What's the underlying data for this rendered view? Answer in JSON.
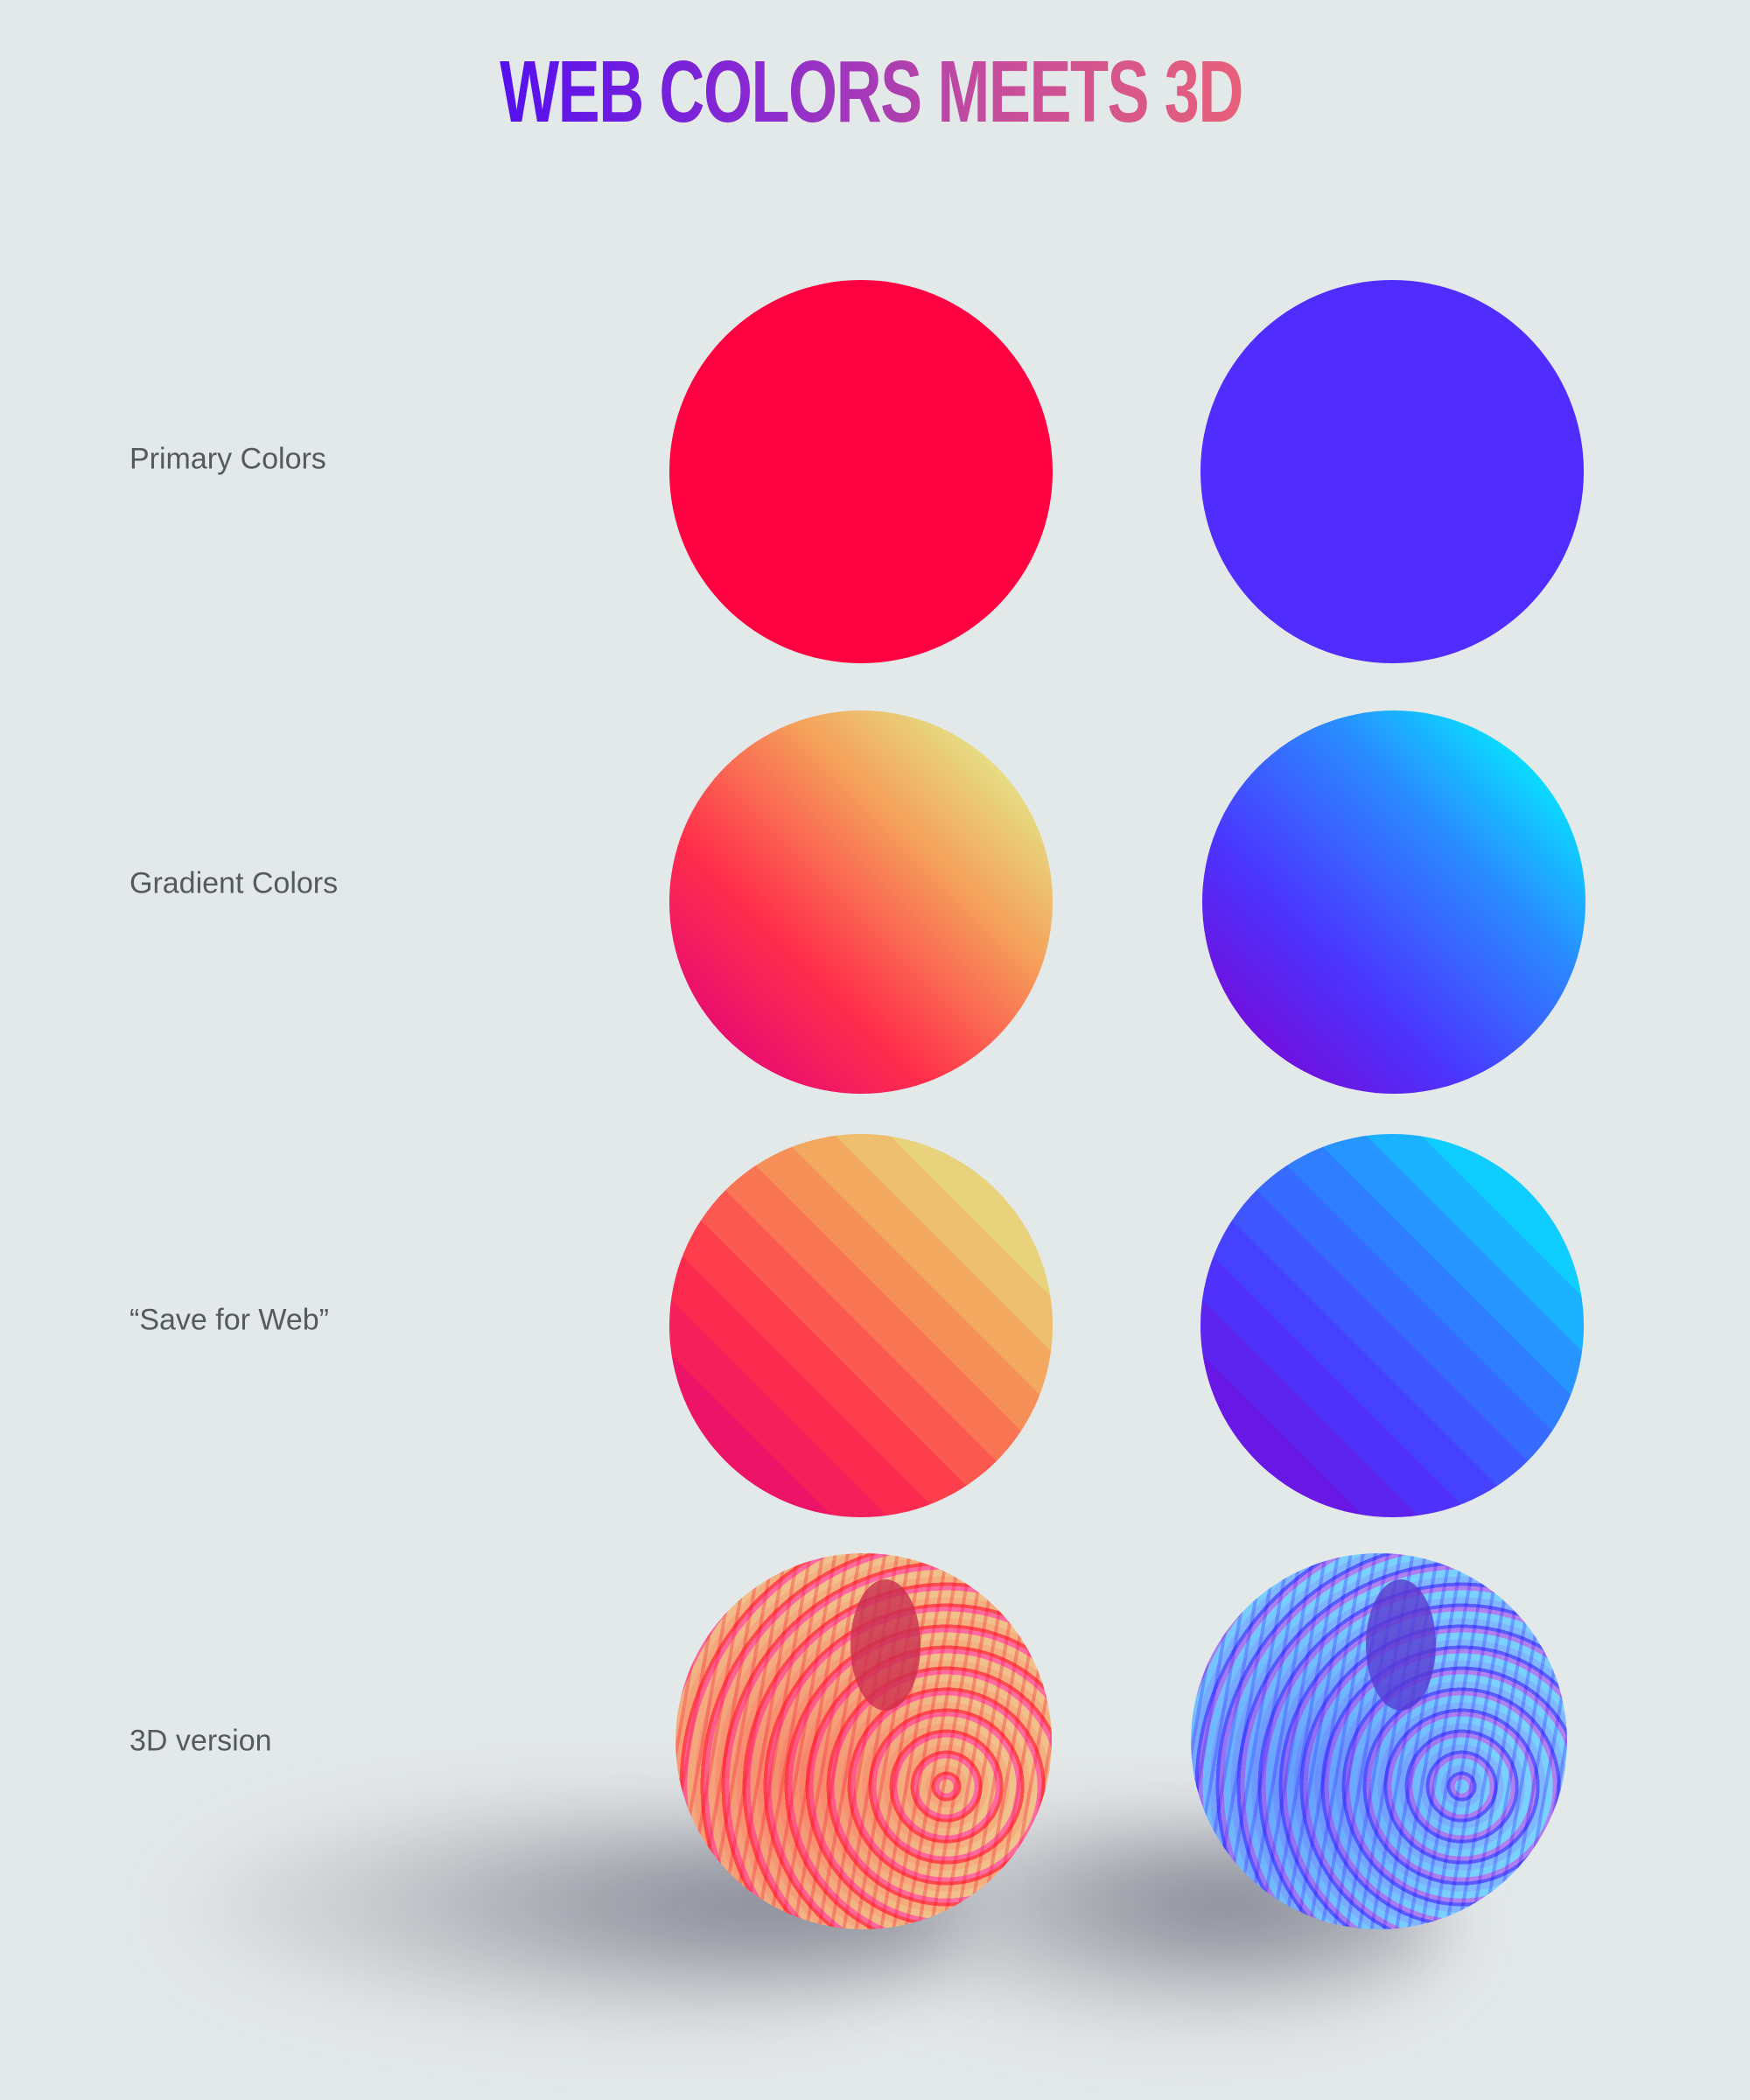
{
  "title": "WEB COLORS MEETS 3D",
  "rows": [
    {
      "label": "Primary Colors"
    },
    {
      "label": "Gradient Colors"
    },
    {
      "label": "“Save for Web”"
    },
    {
      "label": "3D version"
    }
  ],
  "colors": {
    "primary_left": "#ff0040",
    "primary_right": "#502cff",
    "gradient_left": [
      "#e0007f",
      "#ff2e4a",
      "#f5a05a",
      "#e0f090"
    ],
    "gradient_right": [
      "#8000d0",
      "#4b35ff",
      "#2a8aff",
      "#00f5ff"
    ]
  }
}
